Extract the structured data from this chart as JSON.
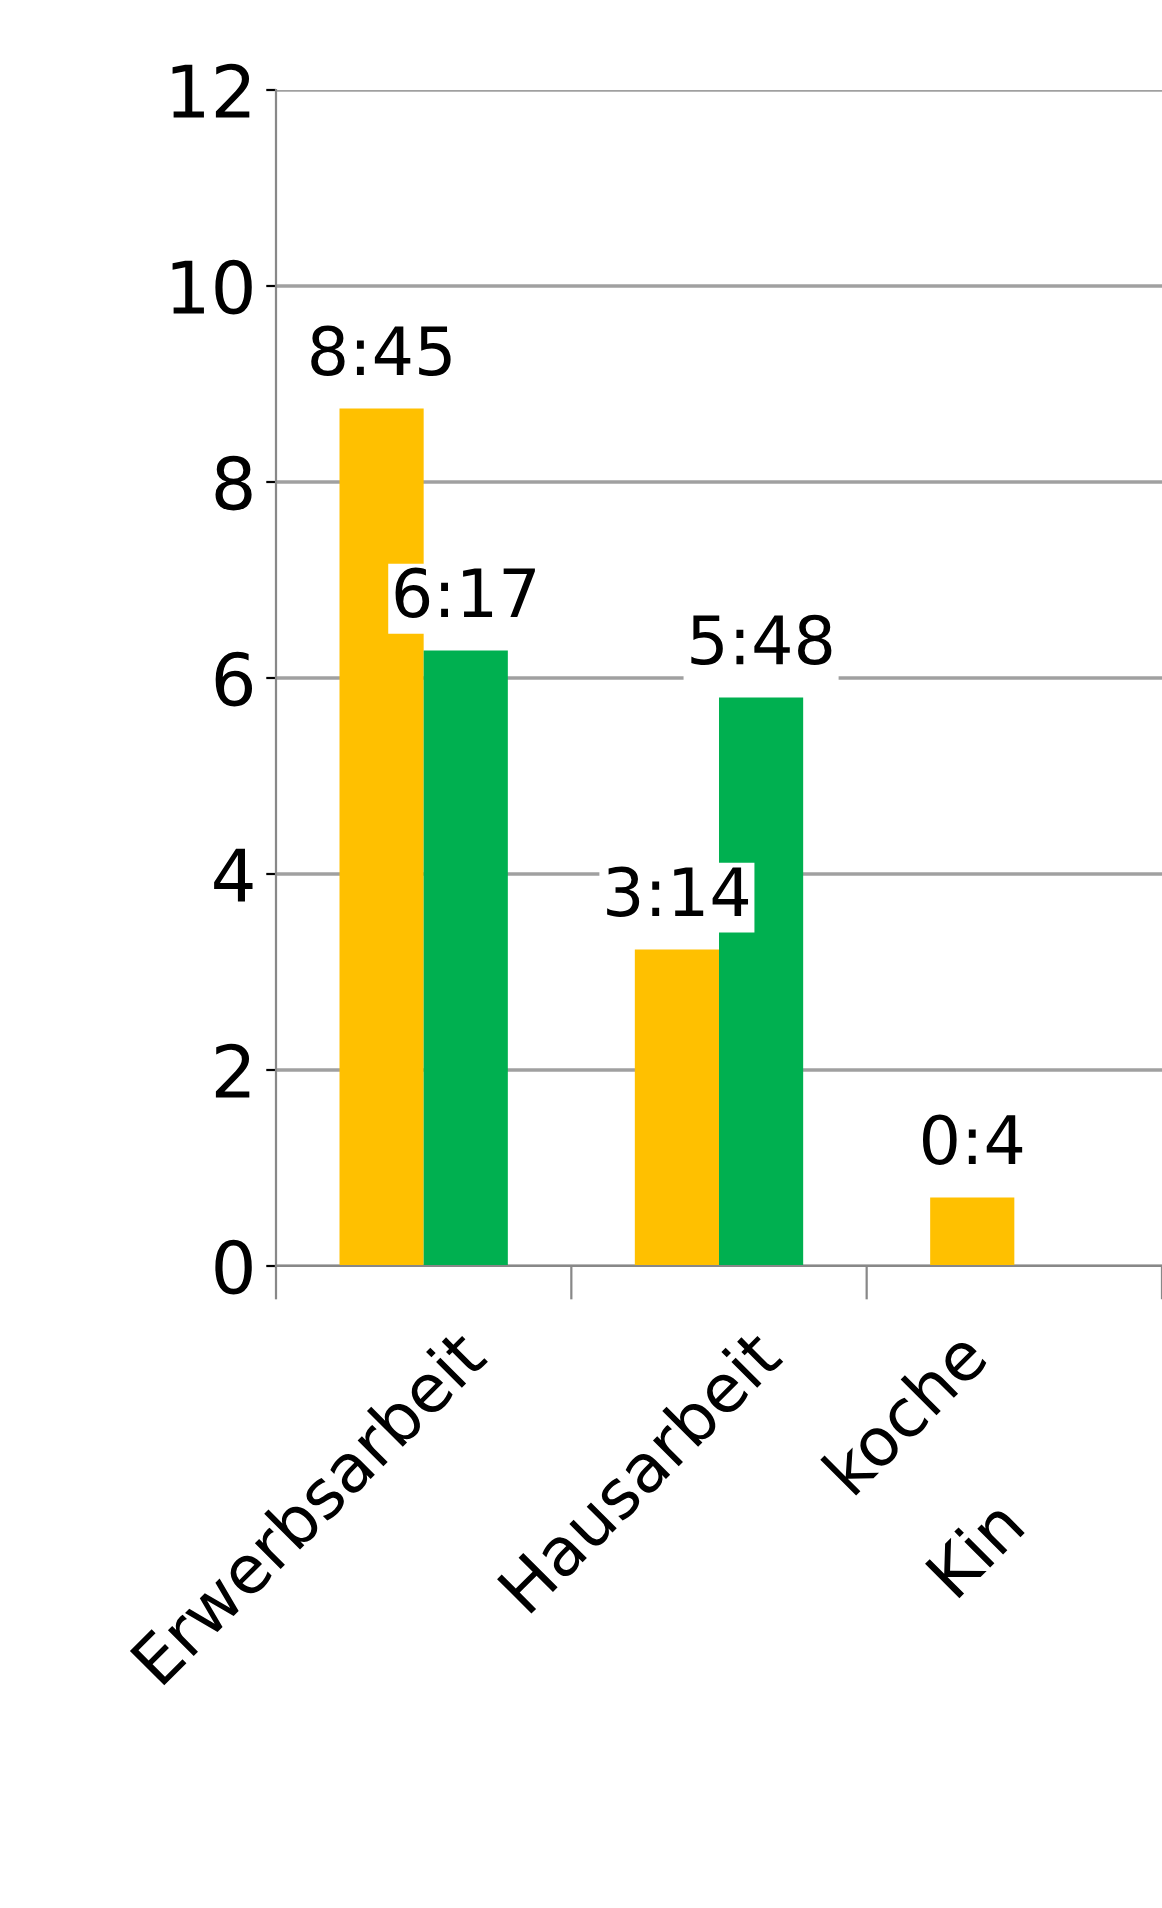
{
  "chart_data": {
    "type": "bar",
    "categories": [
      "Erwerbsarbeit",
      "Hausarbeit",
      "koche\nKin"
    ],
    "series": [
      {
        "color": "#ffc000",
        "values": [
          8.75,
          3.23,
          0.7
        ],
        "value_labels": [
          "8:45",
          "3:14",
          "0:4"
        ]
      },
      {
        "color": "#00b050",
        "values": [
          6.28,
          5.8,
          null
        ],
        "value_labels": [
          "6:17",
          "5:48",
          null
        ]
      }
    ],
    "ylim": [
      0,
      12
    ],
    "yticks": [
      0,
      2,
      4,
      6,
      8,
      10,
      12
    ],
    "grid": "y",
    "legend": false
  }
}
